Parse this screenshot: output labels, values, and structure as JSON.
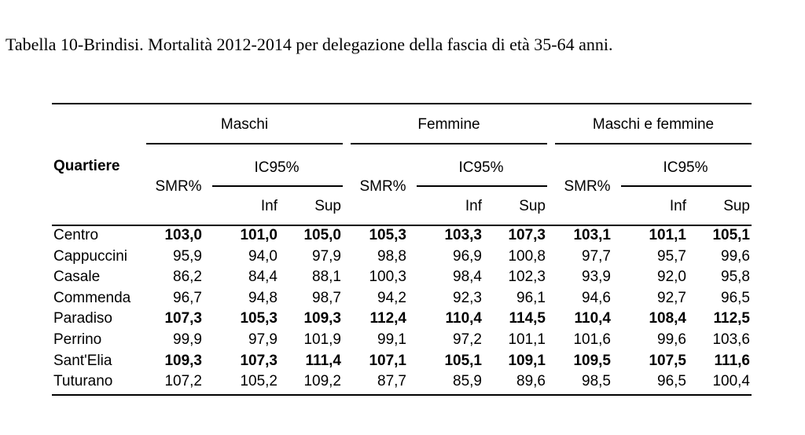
{
  "caption": "Tabella 10-Brindisi. Mortalità 2012-2014 per delegazione della fascia di età 35-64 anni.",
  "table": {
    "row_header": "Quartiere",
    "groups": [
      "Maschi",
      "Femmine",
      "Maschi e femmine"
    ],
    "smr_label": "SMR%",
    "ic_label": "IC95%",
    "inf_label": "Inf",
    "sup_label": "Sup",
    "rows": [
      {
        "name": "Centro",
        "bold": true,
        "values": [
          "103,0",
          "101,0",
          "105,0",
          "105,3",
          "103,3",
          "107,3",
          "103,1",
          "101,1",
          "105,1"
        ]
      },
      {
        "name": "Cappuccini",
        "bold": false,
        "values": [
          "95,9",
          "94,0",
          "97,9",
          "98,8",
          "96,9",
          "100,8",
          "97,7",
          "95,7",
          "99,6"
        ]
      },
      {
        "name": "Casale",
        "bold": false,
        "values": [
          "86,2",
          "84,4",
          "88,1",
          "100,3",
          "98,4",
          "102,3",
          "93,9",
          "92,0",
          "95,8"
        ]
      },
      {
        "name": "Commenda",
        "bold": false,
        "values": [
          "96,7",
          "94,8",
          "98,7",
          "94,2",
          "92,3",
          "96,1",
          "94,6",
          "92,7",
          "96,5"
        ]
      },
      {
        "name": "Paradiso",
        "bold": true,
        "values": [
          "107,3",
          "105,3",
          "109,3",
          "112,4",
          "110,4",
          "114,5",
          "110,4",
          "108,4",
          "112,5"
        ]
      },
      {
        "name": "Perrino",
        "bold": false,
        "values": [
          "99,9",
          "97,9",
          "101,9",
          "99,1",
          "97,2",
          "101,1",
          "101,6",
          "99,6",
          "103,6"
        ]
      },
      {
        "name": "Sant'Elia",
        "bold": true,
        "values": [
          "109,3",
          "107,3",
          "111,4",
          "107,1",
          "105,1",
          "109,1",
          "109,5",
          "107,5",
          "111,6"
        ]
      },
      {
        "name": "Tuturano",
        "bold": false,
        "values": [
          "107,2",
          "105,2",
          "109,2",
          "87,7",
          "85,9",
          "89,6",
          "98,5",
          "96,5",
          "100,4"
        ]
      }
    ]
  }
}
